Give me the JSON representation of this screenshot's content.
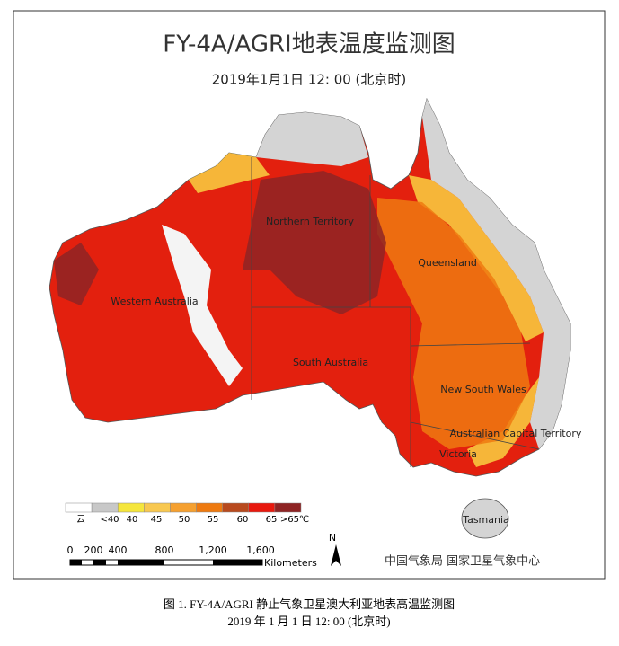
{
  "title": "FY-4A/AGRI地表温度监测图",
  "subtitle": "2019年1月1日 12: 00 (北京时)",
  "regions": [
    "Northern Territory",
    "Queensland",
    "Western Australia",
    "South Australia",
    "New South Wales",
    "Australian Capital Territory",
    "Victoria",
    "Tasmania"
  ],
  "legend": {
    "boxes": [
      "#ffffff",
      "#c8c8c8",
      "#f5e63c",
      "#f8c850",
      "#f5a030",
      "#ee7a10",
      "#b84a1e",
      "#e8190e",
      "#8e2424"
    ],
    "labels": [
      "云",
      "<40",
      "40",
      "45",
      "50",
      "55",
      "60",
      "65",
      ">65℃"
    ]
  },
  "scale_bar": {
    "ticks": [
      "0",
      "200",
      "400",
      "800",
      "1,200",
      "1,600"
    ],
    "unit": "Kilometers"
  },
  "north": "N",
  "agencies": "中国气象局  国家卫星气象中心",
  "caption": [
    "图 1. FY-4A/AGRI 静止气象卫星澳大利亚地表高温监测图",
    "2019 年 1 月 1 日 12: 00 (北京时)"
  ]
}
